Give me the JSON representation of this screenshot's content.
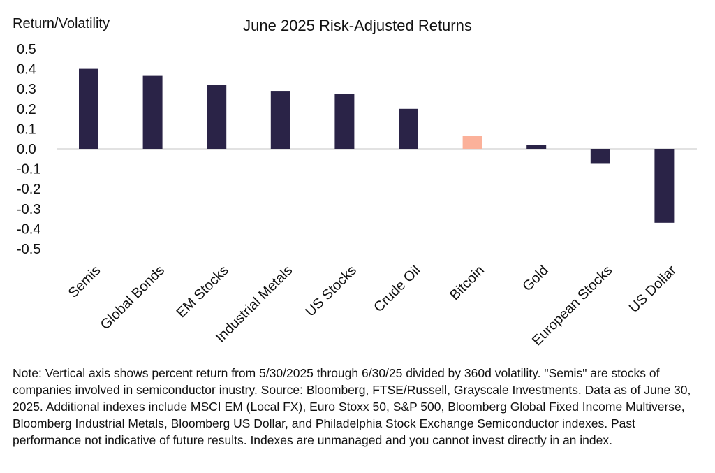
{
  "chart_data": {
    "type": "bar",
    "title": "June 2025 Risk-Adjusted Returns",
    "ylabel": "Return/Volatility",
    "xlabel": "",
    "categories": [
      "Semis",
      "Global Bonds",
      "EM Stocks",
      "Industrial Metals",
      "US Stocks",
      "Crude Oil",
      "Bitcoin",
      "Gold",
      "European Stocks",
      "US Dollar"
    ],
    "values": [
      0.4,
      0.365,
      0.32,
      0.29,
      0.275,
      0.2,
      0.065,
      0.02,
      -0.075,
      -0.37
    ],
    "ylim": [
      -0.5,
      0.5
    ],
    "yticks": [
      "0.5",
      "0.4",
      "0.3",
      "0.2",
      "0.1",
      "0.0",
      "-0.1",
      "-0.2",
      "-0.3",
      "-0.4",
      "-0.5"
    ],
    "ytick_values": [
      0.5,
      0.4,
      0.3,
      0.2,
      0.1,
      0.0,
      -0.1,
      -0.2,
      -0.3,
      -0.4,
      -0.5
    ],
    "grid": false,
    "colors": {
      "default_bar": "#2a2347",
      "highlight_bar": "#fbb19a",
      "zero_line": "#d0d0d0"
    },
    "highlight_category": "Bitcoin"
  },
  "note": "Note: Vertical axis shows percent return from 5/30/2025 through 6/30/25 divided by 360d volatility. \"Semis\" are stocks of companies involved in semiconductor inustry. Source: Bloomberg, FTSE/Russell, Grayscale Investments. Data as of June 30, 2025. Additional indexes include MSCI EM (Local FX), Euro Stoxx 50, S&P 500, Bloomberg Global Fixed Income Multiverse, Bloomberg Industrial Metals, Bloomberg US Dollar, and Philadelphia Stock Exchange Semiconductor indexes. Past performance not indicative of future results. Indexes are unmanaged and you cannot invest directly in an index."
}
